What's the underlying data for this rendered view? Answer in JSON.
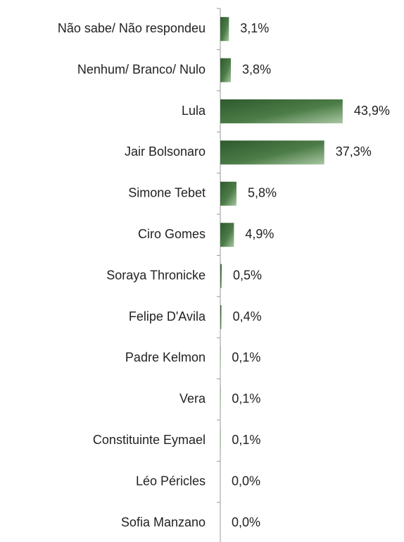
{
  "chart_data": {
    "type": "bar",
    "orientation": "horizontal",
    "categories": [
      "Não sabe/ Não respondeu",
      "Nenhum/ Branco/ Nulo",
      "Lula",
      "Jair Bolsonaro",
      "Simone Tebet",
      "Ciro Gomes",
      "Soraya Thronicke",
      "Felipe D'Avila",
      "Padre Kelmon",
      "Vera",
      "Constituinte Eymael",
      "Léo Péricles",
      "Sofia Manzano"
    ],
    "values": [
      3.1,
      3.8,
      43.9,
      37.3,
      5.8,
      4.9,
      0.5,
      0.4,
      0.1,
      0.1,
      0.1,
      0.0,
      0.0
    ],
    "value_labels": [
      "3,1%",
      "3,8%",
      "43,9%",
      "37,3%",
      "5,8%",
      "4,9%",
      "0,5%",
      "0,4%",
      "0,1%",
      "0,1%",
      "0,1%",
      "0,0%",
      "0,0%"
    ],
    "color": "#3f6e3b",
    "xlim": [
      0,
      50
    ]
  }
}
